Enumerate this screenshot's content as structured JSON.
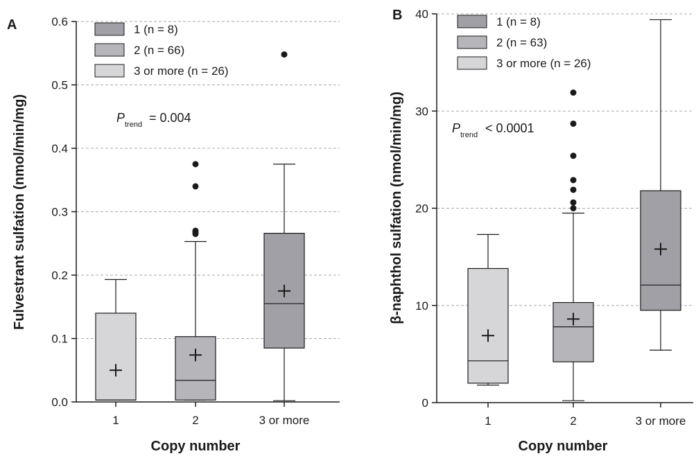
{
  "panels": [
    {
      "letter": "A",
      "p_symbol": "P",
      "p_subscript": "trend",
      "p_value": "= 0.004"
    },
    {
      "letter": "B",
      "p_symbol": "P",
      "p_subscript": "trend",
      "p_value": "< 0.0001"
    }
  ],
  "colors": {
    "copy_1": "#d6d6d8",
    "copy_2": "#b6b6ba",
    "copy_3_or_more": "#a0a0a6",
    "copy_1_legend": "#a0a0a6",
    "copy_2_legend": "#b6b6ba",
    "copy_3_or_more_legend": "#d6d6d8",
    "grid": "#aaaaaa",
    "ink": "#1a1a1a"
  },
  "chart_data": [
    {
      "type": "box",
      "panel": "A",
      "xlabel": "Copy number",
      "ylabel": "Fulvestrant sulfation (nmol/min/mg)",
      "categories": [
        "1",
        "2",
        "3 or more"
      ],
      "ylim": [
        0,
        0.6
      ],
      "yticks": [
        0.0,
        0.1,
        0.2,
        0.3,
        0.4,
        0.5,
        0.6
      ],
      "ytick_labels": [
        "0.0",
        "0.1",
        "0.2",
        "0.3",
        "0.4",
        "0.5",
        "0.6"
      ],
      "grid": "horizontal dashed",
      "legend": {
        "position": "top-left",
        "entries": [
          "1 (n = 8)",
          "2 (n = 66)",
          "3 or more (n = 26)"
        ]
      },
      "series": [
        {
          "category": "1",
          "min": 0.003,
          "q1": 0.003,
          "median": 0.003,
          "q3": 0.14,
          "max": 0.193,
          "mean": 0.05,
          "outliers": []
        },
        {
          "category": "2",
          "min": 0.003,
          "q1": 0.003,
          "median": 0.034,
          "q3": 0.103,
          "max": 0.253,
          "mean": 0.074,
          "outliers": [
            0.265,
            0.268,
            0.27,
            0.34,
            0.375
          ]
        },
        {
          "category": "3 or more",
          "min": 0.002,
          "q1": 0.085,
          "median": 0.155,
          "q3": 0.266,
          "max": 0.375,
          "mean": 0.175,
          "outliers": [
            0.548
          ]
        }
      ],
      "annotation": "P trend = 0.004"
    },
    {
      "type": "box",
      "panel": "B",
      "xlabel": "Copy number",
      "ylabel": "β-naphthol sulfation (nmol/min/mg)",
      "categories": [
        "1",
        "2",
        "3 or more"
      ],
      "ylim": [
        0,
        40
      ],
      "yticks": [
        0,
        10,
        20,
        30,
        40
      ],
      "ytick_labels": [
        "0",
        "10",
        "20",
        "30",
        "40"
      ],
      "grid": "horizontal dashed",
      "legend": {
        "position": "top-left",
        "entries": [
          "1 (n = 8)",
          "2 (n = 63)",
          "3 or more (n = 26)"
        ]
      },
      "series": [
        {
          "category": "1",
          "min": 1.8,
          "q1": 2.0,
          "median": 4.3,
          "q3": 13.8,
          "max": 17.3,
          "mean": 6.9,
          "outliers": []
        },
        {
          "category": "2",
          "min": 0.2,
          "q1": 4.2,
          "median": 7.8,
          "q3": 10.3,
          "max": 19.5,
          "mean": 8.6,
          "outliers": [
            20.0,
            20.6,
            21.9,
            22.9,
            25.4,
            28.7,
            31.9
          ]
        },
        {
          "category": "3 or more",
          "min": 5.4,
          "q1": 9.5,
          "median": 12.1,
          "q3": 21.8,
          "max": 39.4,
          "mean": 15.8,
          "outliers": []
        }
      ],
      "annotation": "P trend < 0.0001"
    }
  ]
}
